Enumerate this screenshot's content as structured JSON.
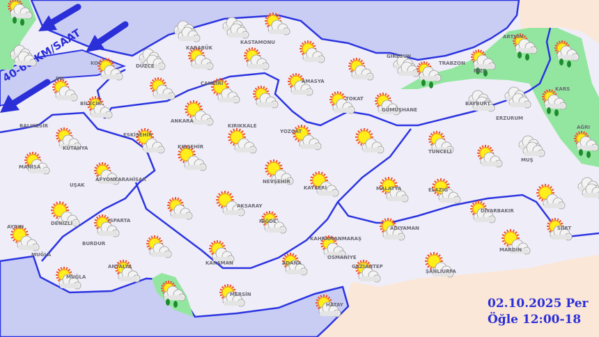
{
  "colors": {
    "sea": "#c9cdf4",
    "land": "#efedf7",
    "neighbor": "#fbe7d7",
    "rain_zone": "#93e6a0",
    "border": "#2b34e0",
    "text": "#2b2fd8"
  },
  "wind": {
    "label": "40-60 KM/SAAT",
    "direction": "from northeast"
  },
  "caption": {
    "date": "02.10.2025 Per",
    "period": "Öğle 12:00-18"
  },
  "stations": [
    {
      "label": "",
      "weather": "rain"
    },
    {
      "label": "",
      "weather": "cloudy"
    },
    {
      "label": "KOC",
      "weather": "partly-cloudy"
    },
    {
      "label": "",
      "weather": "cloudy"
    },
    {
      "label": "",
      "weather": "cloudy"
    },
    {
      "label": "",
      "weather": "partly-cloudy"
    },
    {
      "label": "DÜZCE",
      "weather": "cloudy"
    },
    {
      "label": "KARABÜK",
      "weather": "partly-cloudy"
    },
    {
      "label": "KASTAMONU",
      "weather": "partly-cloudy"
    },
    {
      "label": "",
      "weather": "partly-cloudy"
    },
    {
      "label": "BU",
      "weather": "partly-cloudy"
    },
    {
      "label": "BİLECİK",
      "weather": "partly-cloudy"
    },
    {
      "label": "",
      "weather": "partly-cloudy"
    },
    {
      "label": "ÇANKIRI",
      "weather": "sunny"
    },
    {
      "label": "",
      "weather": "partly-cloudy"
    },
    {
      "label": "AMASYA",
      "weather": "partly-cloudy"
    },
    {
      "label": "TOKAT",
      "weather": "partly-cloudy"
    },
    {
      "label": "",
      "weather": "partly-cloudy"
    },
    {
      "label": "GİRESUN",
      "weather": "cloudy"
    },
    {
      "label": "TRABZON",
      "weather": "rain"
    },
    {
      "label": "RİZE",
      "weather": "rain"
    },
    {
      "label": "ARTVİN",
      "weather": "rain"
    },
    {
      "label": "",
      "weather": "rain"
    },
    {
      "label": "GÜMÜŞHANE",
      "weather": "partly-cloudy"
    },
    {
      "label": "BAYBURT",
      "weather": "cloudy"
    },
    {
      "label": "ERZURUM",
      "weather": "cloudy"
    },
    {
      "label": "KARS",
      "weather": "rain"
    },
    {
      "label": "AĞRI",
      "weather": "rain"
    },
    {
      "label": "ANKARA",
      "weather": "sunny"
    },
    {
      "label": "KIRIKKALE",
      "weather": "sunny"
    },
    {
      "label": "YOZGAT",
      "weather": "sunny"
    },
    {
      "label": "",
      "weather": "sunny"
    },
    {
      "label": "ESKİŞEHİR",
      "weather": "sunny"
    },
    {
      "label": "KÜTAHYA",
      "weather": "partly-cloudy"
    },
    {
      "label": "KIRŞEHİR",
      "weather": "sunny"
    },
    {
      "label": "TUNCELİ",
      "weather": "partly-cloudy"
    },
    {
      "label": "",
      "weather": "partly-cloudy"
    },
    {
      "label": "MUŞ",
      "weather": "cloudy"
    },
    {
      "label": "",
      "weather": "cloudy"
    },
    {
      "label": "MANİSA",
      "weather": "partly-cloudy"
    },
    {
      "label": "AFYONKARAHİSAR",
      "weather": "partly-cloudy"
    },
    {
      "label": "NEVŞEHİR",
      "weather": "sunny"
    },
    {
      "label": "KAYSERİ",
      "weather": "sunny"
    },
    {
      "label": "MALATYA",
      "weather": "sunny"
    },
    {
      "label": "ELAZIĞ",
      "weather": "sunny"
    },
    {
      "label": "",
      "weather": "sunny"
    },
    {
      "label": "DENİZLİ",
      "weather": "sunny"
    },
    {
      "label": "AYDIN",
      "weather": "sunny"
    },
    {
      "label": "ISPARTA",
      "weather": "partly-cloudy"
    },
    {
      "label": "",
      "weather": "partly-cloudy"
    },
    {
      "label": "AKSARAY",
      "weather": "sunny"
    },
    {
      "label": "NİĞDE",
      "weather": "partly-cloudy"
    },
    {
      "label": "ADIYAMAN",
      "weather": "partly-cloudy"
    },
    {
      "label": "DİYARBAKIR",
      "weather": "partly-cloudy"
    },
    {
      "label": "MARDİN",
      "weather": "sunny"
    },
    {
      "label": "SİİRT",
      "weather": "partly-cloudy"
    },
    {
      "label": "",
      "weather": "partly-cloudy"
    },
    {
      "label": "KARAMAN",
      "weather": "partly-cloudy"
    },
    {
      "label": "KAHRAMANMARAŞ",
      "weather": "partly-cloudy"
    },
    {
      "label": "ADANA",
      "weather": "partly-cloudy"
    },
    {
      "label": "GAZİANTEP",
      "weather": "partly-cloudy"
    },
    {
      "label": "ŞANLIURFA",
      "weather": "sunny"
    },
    {
      "label": "MUĞLA",
      "weather": "partly-cloudy"
    },
    {
      "label": "ANTALYA",
      "weather": "partly-cloudy"
    },
    {
      "label": "",
      "weather": "rain"
    },
    {
      "label": "MERSİN",
      "weather": "partly-cloudy"
    },
    {
      "label": "HATAY",
      "weather": "partly-cloudy"
    },
    {
      "label": "UŞAK",
      "weather": ""
    },
    {
      "label": "BALIKESİR",
      "weather": ""
    },
    {
      "label": "BURDUR",
      "weather": ""
    },
    {
      "label": "MUĞLA",
      "weather": ""
    },
    {
      "label": "OSMANİYE",
      "weather": ""
    }
  ]
}
